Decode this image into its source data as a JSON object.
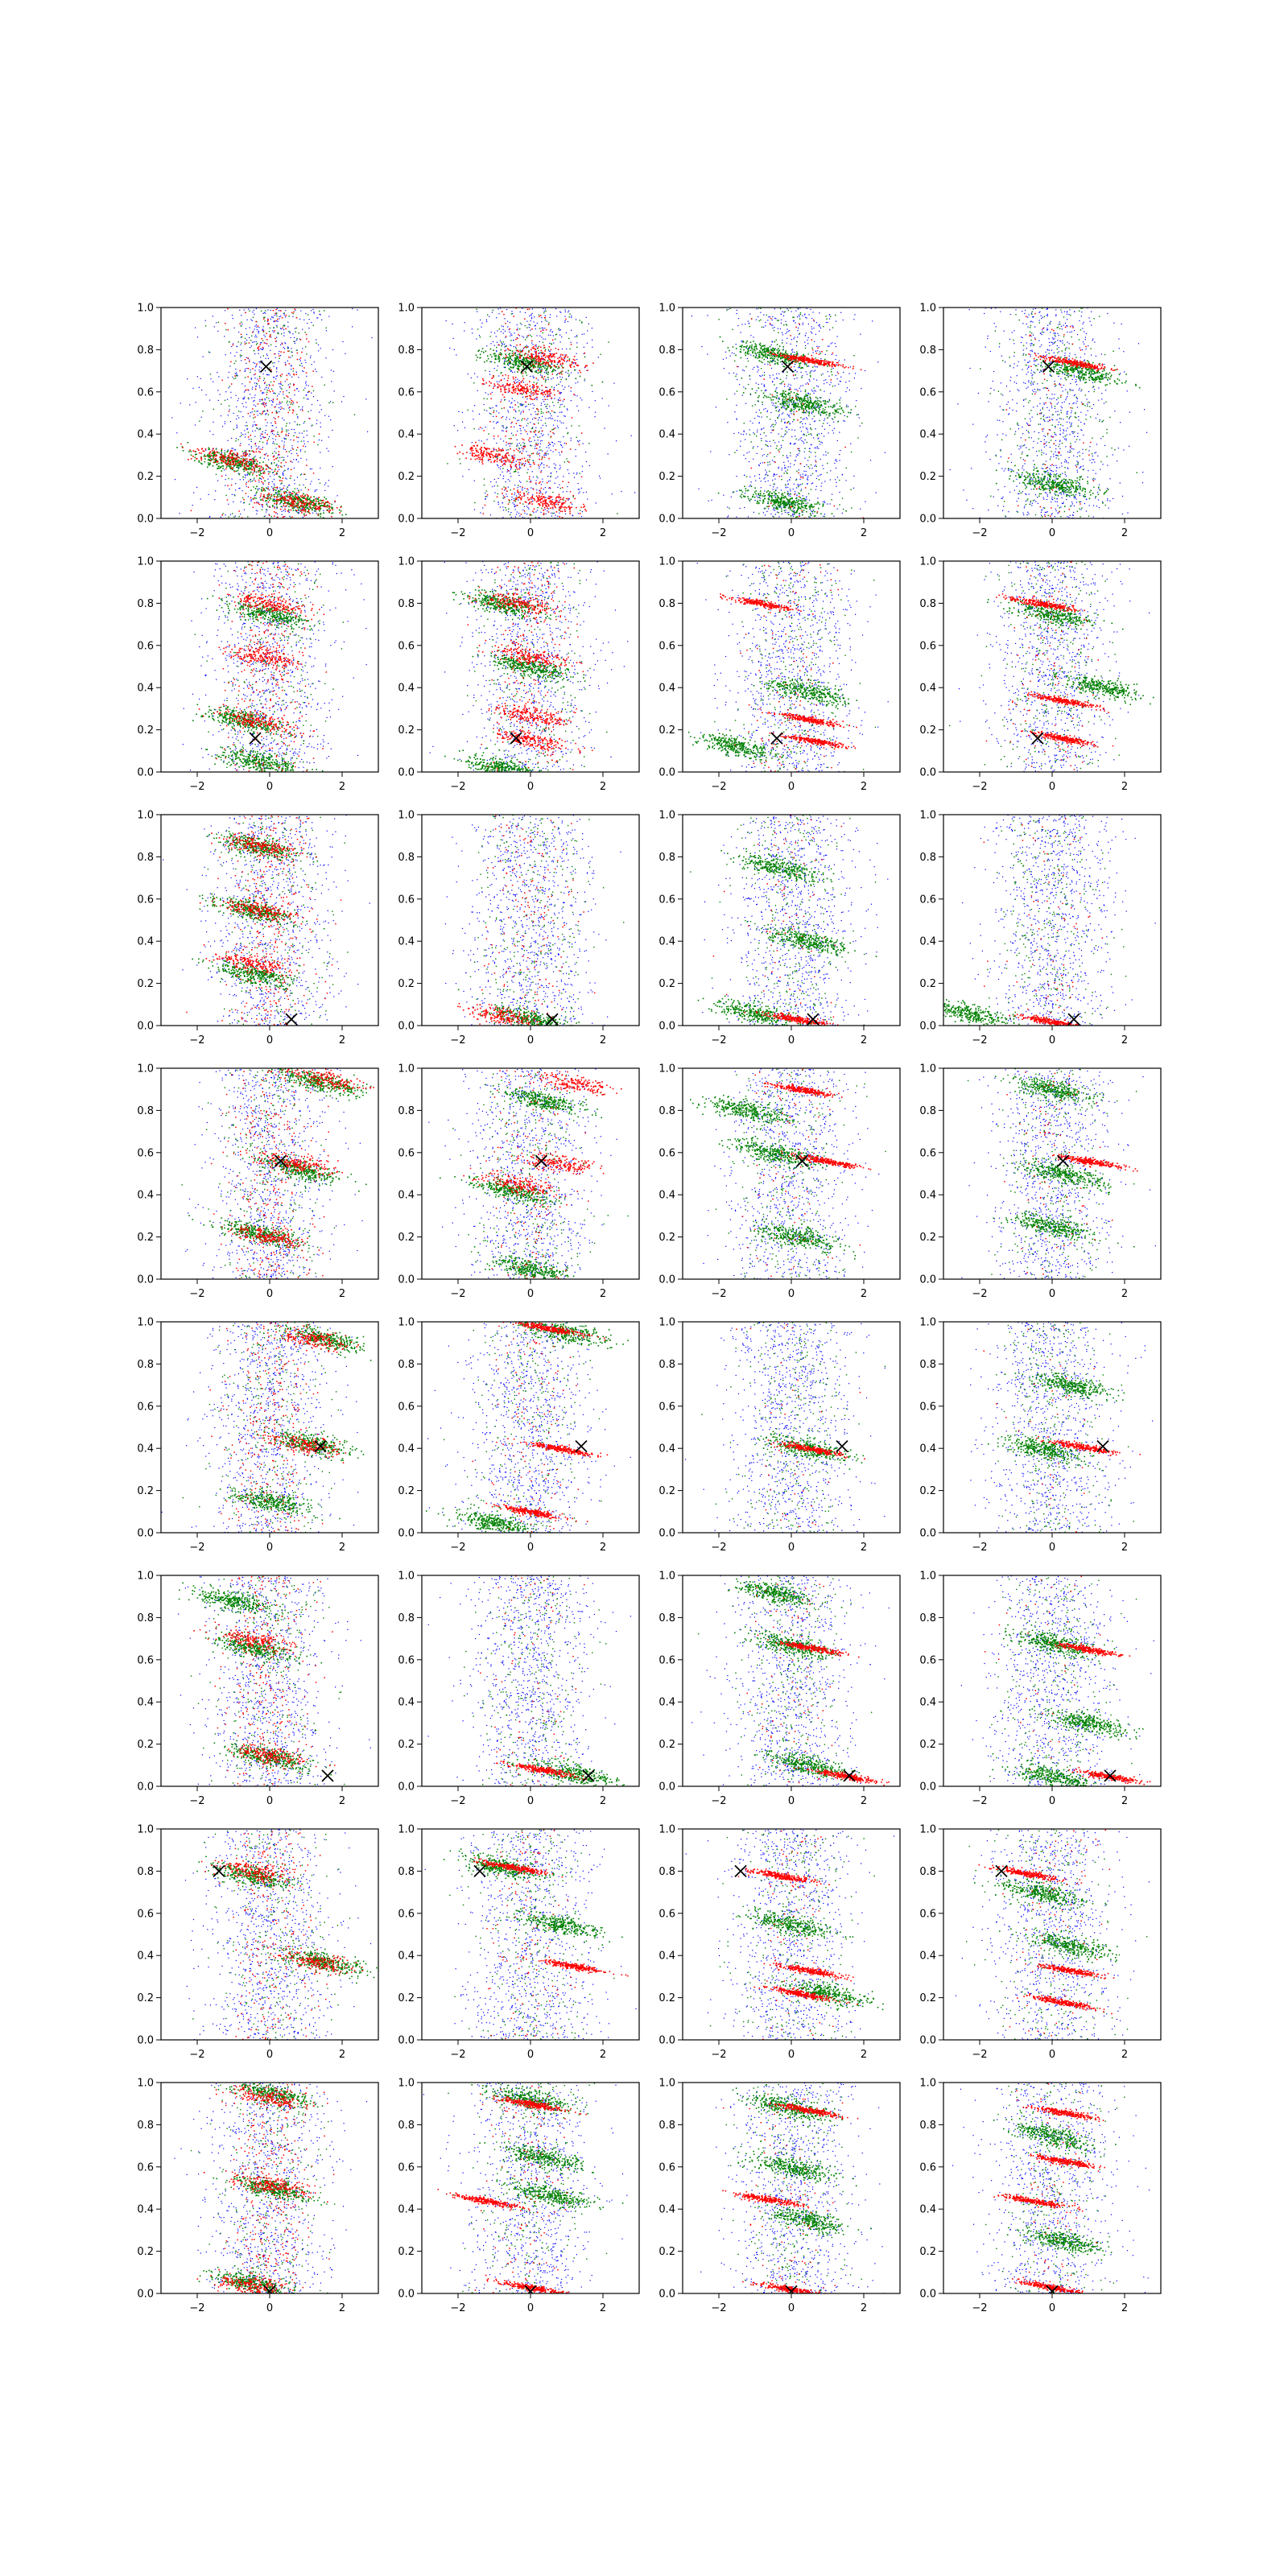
{
  "chart_data": {
    "type": "scatter",
    "layout": {
      "rows": 8,
      "cols": 4
    },
    "xlim": [
      -3,
      3
    ],
    "ylim": [
      0,
      1
    ],
    "xticks": [
      -2,
      0,
      2
    ],
    "yticks": [
      0.0,
      0.2,
      0.4,
      0.6,
      0.8,
      1.0
    ],
    "xtick_labels": [
      "−2",
      "0",
      "2"
    ],
    "ytick_labels": [
      "0.0",
      "0.2",
      "0.4",
      "0.6",
      "0.8",
      "1.0"
    ],
    "grid": false,
    "series_colors": {
      "blue": "#0000ff",
      "green": "#008000",
      "red": "#ff0000"
    },
    "marker_color": "#000000",
    "rows": [
      {
        "marker": [
          -0.1,
          0.72
        ],
        "panels": [
          {
            "green": [
              [
                -1.0,
                0.27
              ],
              [
                0.8,
                0.08
              ]
            ],
            "red": [
              [
                -1.0,
                0.28
              ],
              [
                0.8,
                0.08
              ]
            ],
            "red_spread": 0.4
          },
          {
            "green": [
              [
                -0.2,
                0.74
              ]
            ],
            "red": [
              [
                0.5,
                0.76
              ],
              [
                -0.3,
                0.62
              ],
              [
                -1.0,
                0.3
              ],
              [
                0.5,
                0.08
              ]
            ],
            "red_spread": 0.3
          },
          {
            "green": [
              [
                -0.5,
                0.78
              ],
              [
                0.3,
                0.55
              ],
              [
                -0.2,
                0.08
              ]
            ],
            "red": [
              [
                0.5,
                0.75
              ]
            ],
            "red_spread": 0.1
          },
          {
            "green": [
              [
                0.0,
                0.17
              ],
              [
                0.8,
                0.7
              ]
            ],
            "red": [
              [
                0.6,
                0.74
              ]
            ],
            "red_spread": 0.1
          }
        ]
      },
      {
        "marker": [
          -0.4,
          0.16
        ],
        "panels": [
          {
            "green": [
              [
                -0.8,
                0.25
              ],
              [
                0.0,
                0.75
              ],
              [
                -0.3,
                0.05
              ]
            ],
            "red": [
              [
                -0.5,
                0.25
              ],
              [
                0.0,
                0.8
              ],
              [
                -0.2,
                0.55
              ]
            ],
            "red_spread": 0.45
          },
          {
            "green": [
              [
                -0.8,
                0.02
              ],
              [
                -0.8,
                0.8
              ],
              [
                0.0,
                0.5
              ]
            ],
            "red": [
              [
                -0.3,
                0.8
              ],
              [
                0.0,
                0.27
              ],
              [
                0.0,
                0.15
              ],
              [
                0.0,
                0.55
              ]
            ],
            "red_spread": 0.35
          },
          {
            "green": [
              [
                -1.5,
                0.12
              ],
              [
                0.5,
                0.38
              ]
            ],
            "red": [
              [
                0.6,
                0.15
              ],
              [
                -0.8,
                0.8
              ],
              [
                0.5,
                0.25
              ]
            ],
            "red_spread": 0.15
          },
          {
            "green": [
              [
                1.4,
                0.4
              ],
              [
                0.0,
                0.75
              ]
            ],
            "red": [
              [
                0.3,
                0.16
              ],
              [
                0.3,
                0.34
              ],
              [
                -0.3,
                0.8
              ]
            ],
            "red_spread": 0.15
          }
        ]
      },
      {
        "marker": [
          0.6,
          0.03
        ],
        "panels": [
          {
            "green": [
              [
                -0.5,
                0.55
              ],
              [
                -0.5,
                0.25
              ],
              [
                -0.3,
                0.85
              ]
            ],
            "red": [
              [
                -0.3,
                0.55
              ],
              [
                -0.5,
                0.3
              ],
              [
                -0.2,
                0.85
              ]
            ],
            "red_spread": 0.45
          },
          {
            "green": [
              [
                0.0,
                0.03
              ]
            ],
            "red": [
              [
                -0.8,
                0.05
              ]
            ],
            "red_spread": 0.2
          },
          {
            "green": [
              [
                -1.0,
                0.06
              ],
              [
                0.5,
                0.4
              ],
              [
                -0.3,
                0.75
              ]
            ],
            "red": [
              [
                0.2,
                0.03
              ]
            ],
            "red_spread": 0.1
          },
          {
            "green": [
              [
                -2.3,
                0.06
              ]
            ],
            "red": [
              [
                0.0,
                0.02
              ]
            ],
            "red_spread": 0.1
          }
        ]
      },
      {
        "marker": [
          0.3,
          0.56
        ],
        "panels": [
          {
            "green": [
              [
                1.5,
                0.93
              ],
              [
                0.8,
                0.52
              ],
              [
                -0.3,
                0.22
              ]
            ],
            "red": [
              [
                1.5,
                0.95
              ],
              [
                0.8,
                0.55
              ],
              [
                0.0,
                0.2
              ]
            ],
            "red_spread": 0.4
          },
          {
            "green": [
              [
                0.3,
                0.85
              ],
              [
                -0.5,
                0.42
              ],
              [
                0.0,
                0.05
              ]
            ],
            "red": [
              [
                1.2,
                0.93
              ],
              [
                0.8,
                0.55
              ],
              [
                -0.3,
                0.45
              ]
            ],
            "red_spread": 0.2
          },
          {
            "green": [
              [
                -1.2,
                0.8
              ],
              [
                -0.5,
                0.6
              ],
              [
                0.2,
                0.2
              ]
            ],
            "red": [
              [
                1.0,
                0.56
              ],
              [
                0.3,
                0.9
              ]
            ],
            "red_spread": 0.1
          },
          {
            "green": [
              [
                0.0,
                0.9
              ],
              [
                0.0,
                0.25
              ],
              [
                0.3,
                0.5
              ]
            ],
            "red": [
              [
                1.0,
                0.56
              ]
            ],
            "red_spread": 0.1
          }
        ]
      },
      {
        "marker": [
          1.4,
          0.41
        ],
        "panels": [
          {
            "green": [
              [
                1.5,
                0.92
              ],
              [
                1.2,
                0.42
              ],
              [
                0.0,
                0.15
              ]
            ],
            "red": [
              [
                1.2,
                0.92
              ],
              [
                1.0,
                0.42
              ]
            ],
            "red_spread": 0.35
          },
          {
            "green": [
              [
                1.0,
                0.95
              ],
              [
                -1.0,
                0.05
              ]
            ],
            "red": [
              [
                0.5,
                0.97
              ],
              [
                0.8,
                0.4
              ],
              [
                0.0,
                0.1
              ]
            ],
            "red_spread": 0.15
          },
          {
            "green": [
              [
                0.5,
                0.4
              ]
            ],
            "red": [
              [
                0.5,
                0.4
              ]
            ],
            "red_spread": 0.05
          },
          {
            "green": [
              [
                -0.3,
                0.4
              ],
              [
                0.5,
                0.7
              ]
            ],
            "red": [
              [
                0.8,
                0.41
              ]
            ],
            "red_spread": 0.05
          }
        ]
      },
      {
        "marker": [
          1.6,
          0.05
        ],
        "panels": [
          {
            "green": [
              [
                -1.0,
                0.88
              ],
              [
                -0.5,
                0.66
              ],
              [
                0.0,
                0.14
              ]
            ],
            "red": [
              [
                -0.5,
                0.7
              ],
              [
                0.0,
                0.15
              ]
            ],
            "red_spread": 0.35
          },
          {
            "green": [
              [
                1.2,
                0.06
              ]
            ],
            "red": [
              [
                0.3,
                0.08
              ]
            ],
            "red_spread": 0.1
          },
          {
            "green": [
              [
                0.0,
                0.67
              ],
              [
                0.5,
                0.1
              ],
              [
                -0.5,
                0.92
              ]
            ],
            "red": [
              [
                0.5,
                0.66
              ],
              [
                1.5,
                0.05
              ]
            ],
            "red_spread": 0.1
          },
          {
            "green": [
              [
                0.0,
                0.68
              ],
              [
                0.0,
                0.05
              ],
              [
                1.0,
                0.3
              ]
            ],
            "red": [
              [
                1.5,
                0.05
              ],
              [
                1.0,
                0.65
              ]
            ],
            "red_spread": 0.05
          }
        ]
      },
      {
        "marker": [
          -1.4,
          0.8
        ],
        "panels": [
          {
            "green": [
              [
                1.5,
                0.37
              ],
              [
                -0.5,
                0.78
              ]
            ],
            "red": [
              [
                1.3,
                0.37
              ],
              [
                -0.5,
                0.8
              ]
            ],
            "red_spread": 0.3
          },
          {
            "green": [
              [
                0.8,
                0.55
              ],
              [
                -0.8,
                0.82
              ]
            ],
            "red": [
              [
                1.2,
                0.35
              ],
              [
                -0.5,
                0.82
              ]
            ],
            "red_spread": 0.15
          },
          {
            "green": [
              [
                1.0,
                0.22
              ],
              [
                0.0,
                0.55
              ]
            ],
            "red": [
              [
                -0.3,
                0.78
              ],
              [
                0.5,
                0.33
              ],
              [
                0.3,
                0.22
              ]
            ],
            "red_spread": 0.1
          },
          {
            "green": [
              [
                -0.3,
                0.7
              ],
              [
                0.5,
                0.45
              ]
            ],
            "red": [
              [
                -0.7,
                0.79
              ],
              [
                0.5,
                0.33
              ],
              [
                0.3,
                0.18
              ]
            ],
            "red_spread": 0.1
          }
        ]
      },
      {
        "marker": [
          0.0,
          0.01
        ],
        "panels": [
          {
            "green": [
              [
                0.0,
                0.95
              ],
              [
                0.0,
                0.5
              ],
              [
                -0.5,
                0.05
              ]
            ],
            "red": [
              [
                0.0,
                0.93
              ],
              [
                0.0,
                0.52
              ],
              [
                -0.5,
                0.04
              ]
            ],
            "red_spread": 0.45
          },
          {
            "green": [
              [
                0.5,
                0.47
              ],
              [
                0.0,
                0.92
              ],
              [
                0.3,
                0.65
              ]
            ],
            "red": [
              [
                -1.2,
                0.44
              ],
              [
                0.0,
                0.03
              ],
              [
                0.0,
                0.9
              ]
            ],
            "red_spread": 0.15
          },
          {
            "green": [
              [
                0.0,
                0.88
              ],
              [
                0.5,
                0.35
              ],
              [
                0.0,
                0.6
              ]
            ],
            "red": [
              [
                -0.7,
                0.45
              ],
              [
                0.0,
                0.02
              ],
              [
                0.5,
                0.87
              ]
            ],
            "red_spread": 0.1
          },
          {
            "green": [
              [
                0.3,
                0.25
              ],
              [
                0.0,
                0.75
              ]
            ],
            "red": [
              [
                -0.5,
                0.44
              ],
              [
                0.0,
                0.03
              ],
              [
                0.3,
                0.86
              ],
              [
                0.3,
                0.63
              ]
            ],
            "red_spread": 0.1
          }
        ]
      }
    ]
  }
}
